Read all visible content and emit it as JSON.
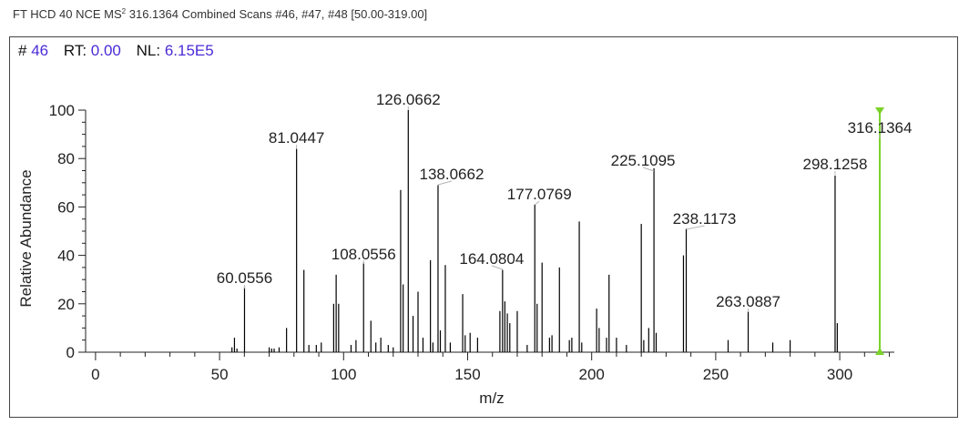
{
  "header": {
    "prefix": "FT HCD 40 NCE MS",
    "superscript": "2",
    "suffix": "316.1364 Combined Scans #46, #47, #48 [50.00-319.00]"
  },
  "scan": {
    "scan_label": "#",
    "scan_value": "46",
    "rt_label": "RT:",
    "rt_value": "0.00",
    "nl_label": "NL:",
    "nl_value": "6.15E5"
  },
  "colors": {
    "peaks": "#000000",
    "precursor": "#7bd22a",
    "value_text": "#4b2bd6"
  },
  "chart_data": {
    "type": "bar",
    "title": "",
    "xlabel": "m/z",
    "ylabel": "Relative Abundance",
    "xlim": [
      -4,
      322
    ],
    "ylim": [
      0,
      100
    ],
    "xticks": [
      0,
      50,
      100,
      150,
      200,
      250,
      300
    ],
    "yticks": [
      0,
      20,
      40,
      60,
      80,
      100
    ],
    "precursor": {
      "mz": 316.1364,
      "label": "316.1364"
    },
    "peaks": [
      [
        55,
        2
      ],
      [
        56,
        6
      ],
      [
        57,
        1.5
      ],
      [
        60.0556,
        27
      ],
      [
        70,
        2
      ],
      [
        71,
        1.5
      ],
      [
        72,
        1.5
      ],
      [
        74,
        2
      ],
      [
        77,
        10
      ],
      [
        81.0447,
        84
      ],
      [
        84,
        34
      ],
      [
        86,
        3
      ],
      [
        89,
        3
      ],
      [
        91,
        4
      ],
      [
        96,
        20
      ],
      [
        97,
        32
      ],
      [
        98,
        20
      ],
      [
        103,
        3
      ],
      [
        105,
        5
      ],
      [
        108.0556,
        37
      ],
      [
        111,
        13
      ],
      [
        113,
        4
      ],
      [
        115,
        6
      ],
      [
        118,
        3
      ],
      [
        120,
        2
      ],
      [
        123,
        67
      ],
      [
        124,
        28
      ],
      [
        126.0662,
        100
      ],
      [
        128,
        15
      ],
      [
        130,
        25
      ],
      [
        132,
        6
      ],
      [
        135,
        38
      ],
      [
        136,
        4
      ],
      [
        138.0662,
        69
      ],
      [
        139,
        9
      ],
      [
        141,
        36
      ],
      [
        143,
        4
      ],
      [
        148,
        24
      ],
      [
        149,
        7
      ],
      [
        151,
        8
      ],
      [
        154,
        6
      ],
      [
        163,
        17
      ],
      [
        164.0804,
        34
      ],
      [
        165,
        21
      ],
      [
        166,
        16
      ],
      [
        167,
        12
      ],
      [
        170,
        17
      ],
      [
        174,
        3
      ],
      [
        177.0769,
        61
      ],
      [
        178,
        20
      ],
      [
        180,
        37
      ],
      [
        183,
        6
      ],
      [
        184,
        7
      ],
      [
        187,
        35
      ],
      [
        191,
        5
      ],
      [
        192,
        6
      ],
      [
        195,
        54
      ],
      [
        196,
        4
      ],
      [
        202,
        18
      ],
      [
        203,
        10
      ],
      [
        206,
        6
      ],
      [
        207,
        32
      ],
      [
        210,
        6
      ],
      [
        214,
        3
      ],
      [
        220,
        53
      ],
      [
        221,
        5
      ],
      [
        223,
        10
      ],
      [
        225.1095,
        76
      ],
      [
        226,
        8
      ],
      [
        237,
        40
      ],
      [
        238.1173,
        51
      ],
      [
        255,
        5
      ],
      [
        263.0887,
        17
      ],
      [
        273,
        4
      ],
      [
        280,
        5
      ],
      [
        298.1258,
        73
      ],
      [
        299,
        12
      ],
      [
        316.1364,
        100
      ]
    ],
    "labels": [
      {
        "mz": 60.0556,
        "text": "60.0556"
      },
      {
        "mz": 81.0447,
        "text": "81.0447"
      },
      {
        "mz": 108.0556,
        "text": "108.0556"
      },
      {
        "mz": 126.0662,
        "text": "126.0662"
      },
      {
        "mz": 138.0662,
        "text": "138.0662"
      },
      {
        "mz": 164.0804,
        "text": "164.0804"
      },
      {
        "mz": 177.0769,
        "text": "177.0769"
      },
      {
        "mz": 225.1095,
        "text": "225.1095"
      },
      {
        "mz": 238.1173,
        "text": "238.1173"
      },
      {
        "mz": 263.0887,
        "text": "263.0887"
      },
      {
        "mz": 298.1258,
        "text": "298.1258"
      },
      {
        "mz": 316.1364,
        "text": "316.1364"
      }
    ]
  }
}
